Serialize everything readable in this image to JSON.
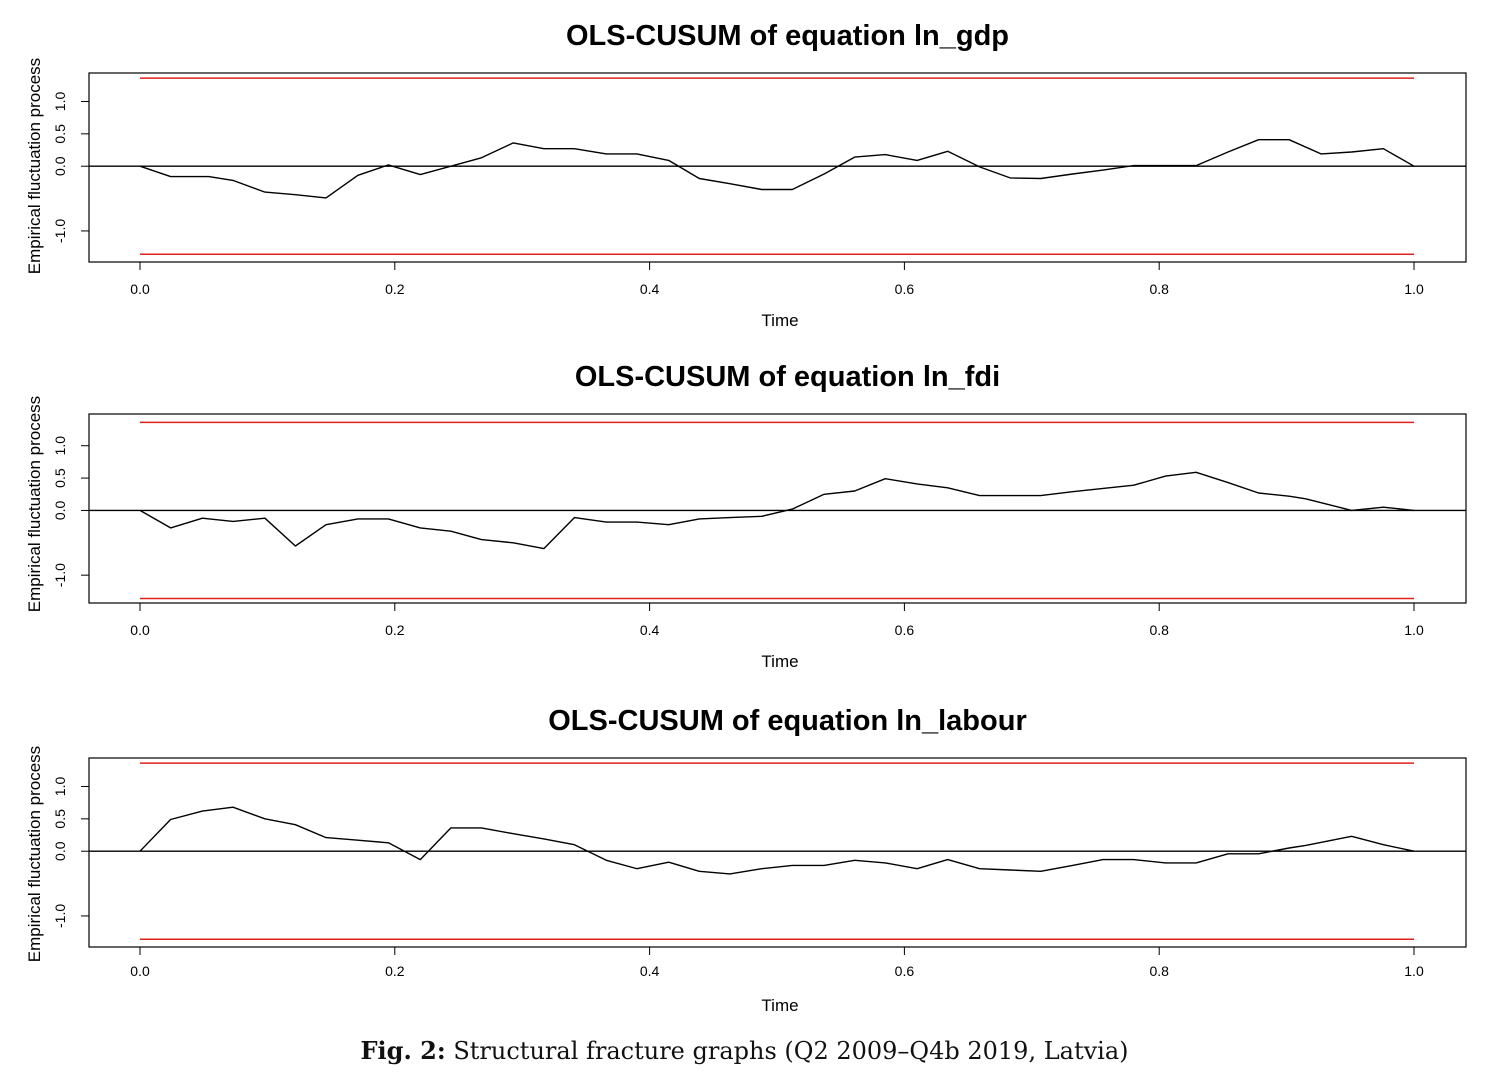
{
  "chart_data": [
    {
      "type": "line",
      "title": "OLS-CUSUM of equation ln_gdp",
      "xlabel": "Time",
      "ylabel": "Empirical fluctuation process",
      "xlim": [
        0.0,
        1.0
      ],
      "ylim": [
        -1.48,
        1.44
      ],
      "x_ticks": [
        "0.0",
        "0.2",
        "0.4",
        "0.6",
        "0.8",
        "1.0"
      ],
      "y_ticks": [
        "-1.0",
        "0.0",
        "0.5",
        "1.0"
      ],
      "boundary": 1.36,
      "series": [
        {
          "color": "#000000",
          "x": [
            0.0,
            0.024,
            0.054,
            0.073,
            0.098,
            0.122,
            0.146,
            0.171,
            0.195,
            0.22,
            0.244,
            0.268,
            0.293,
            0.317,
            0.341,
            0.366,
            0.39,
            0.415,
            0.439,
            0.463,
            0.488,
            0.512,
            0.537,
            0.561,
            0.585,
            0.61,
            0.634,
            0.659,
            0.683,
            0.707,
            0.732,
            0.756,
            0.78,
            0.805,
            0.829,
            0.854,
            0.878,
            0.902,
            0.927,
            0.951,
            0.976,
            1.0
          ],
          "y": [
            0.0,
            -0.16,
            -0.16,
            -0.22,
            -0.4,
            -0.44,
            -0.49,
            -0.14,
            0.02,
            -0.13,
            0.0,
            0.13,
            0.36,
            0.27,
            0.27,
            0.19,
            0.19,
            0.09,
            -0.19,
            -0.27,
            -0.36,
            -0.36,
            -0.12,
            0.14,
            0.18,
            0.09,
            0.23,
            -0.01,
            -0.18,
            -0.19,
            -0.12,
            -0.06,
            0.01,
            0.01,
            0.01,
            0.22,
            0.41,
            0.41,
            0.19,
            0.22,
            0.27,
            0.0
          ]
        }
      ]
    },
    {
      "type": "line",
      "title": "OLS-CUSUM of equation ln_fdi",
      "xlabel": "Time",
      "ylabel": "Empirical fluctuation process",
      "xlim": [
        0.0,
        1.0
      ],
      "ylim": [
        -1.43,
        1.49
      ],
      "x_ticks": [
        "0.0",
        "0.2",
        "0.4",
        "0.6",
        "0.8",
        "1.0"
      ],
      "y_ticks": [
        "-1.0",
        "0.0",
        "0.5",
        "1.0"
      ],
      "boundary": 1.36,
      "series": [
        {
          "color": "#000000",
          "x": [
            0.0,
            0.024,
            0.049,
            0.073,
            0.098,
            0.122,
            0.146,
            0.171,
            0.195,
            0.22,
            0.244,
            0.268,
            0.293,
            0.317,
            0.341,
            0.366,
            0.39,
            0.415,
            0.439,
            0.463,
            0.488,
            0.512,
            0.537,
            0.561,
            0.585,
            0.61,
            0.634,
            0.659,
            0.683,
            0.707,
            0.732,
            0.756,
            0.78,
            0.805,
            0.829,
            0.854,
            0.878,
            0.902,
            0.915,
            0.951,
            0.976,
            1.0
          ],
          "y": [
            0.0,
            -0.27,
            -0.12,
            -0.17,
            -0.12,
            -0.55,
            -0.22,
            -0.13,
            -0.13,
            -0.27,
            -0.32,
            -0.45,
            -0.5,
            -0.59,
            -0.11,
            -0.18,
            -0.18,
            -0.22,
            -0.13,
            -0.11,
            -0.09,
            0.02,
            0.25,
            0.3,
            0.49,
            0.41,
            0.35,
            0.23,
            0.23,
            0.23,
            0.29,
            0.34,
            0.39,
            0.53,
            0.59,
            0.43,
            0.27,
            0.22,
            0.18,
            0.0,
            0.05,
            0.0
          ]
        }
      ]
    },
    {
      "type": "line",
      "title": "OLS-CUSUM of equation ln_labour",
      "xlabel": "Time",
      "ylabel": "Empirical fluctuation process",
      "xlim": [
        0.0,
        1.0
      ],
      "ylim": [
        -1.48,
        1.44
      ],
      "x_ticks": [
        "0.0",
        "0.2",
        "0.4",
        "0.6",
        "0.8",
        "1.0"
      ],
      "y_ticks": [
        "-1.0",
        "0.0",
        "0.5",
        "1.0"
      ],
      "boundary": 1.36,
      "series": [
        {
          "color": "#000000",
          "x": [
            0.0,
            0.024,
            0.049,
            0.073,
            0.098,
            0.122,
            0.146,
            0.171,
            0.195,
            0.22,
            0.244,
            0.268,
            0.293,
            0.317,
            0.341,
            0.366,
            0.39,
            0.415,
            0.439,
            0.463,
            0.488,
            0.512,
            0.537,
            0.561,
            0.585,
            0.61,
            0.634,
            0.659,
            0.683,
            0.707,
            0.732,
            0.756,
            0.78,
            0.805,
            0.829,
            0.854,
            0.878,
            0.902,
            0.915,
            0.951,
            0.976,
            1.0
          ],
          "y": [
            0.0,
            0.49,
            0.62,
            0.68,
            0.5,
            0.41,
            0.21,
            0.17,
            0.13,
            -0.13,
            0.36,
            0.36,
            0.27,
            0.19,
            0.1,
            -0.14,
            -0.27,
            -0.17,
            -0.31,
            -0.35,
            -0.27,
            -0.22,
            -0.22,
            -0.14,
            -0.18,
            -0.27,
            -0.13,
            -0.27,
            -0.29,
            -0.31,
            -0.22,
            -0.13,
            -0.13,
            -0.18,
            -0.18,
            -0.04,
            -0.04,
            0.05,
            0.09,
            0.23,
            0.1,
            0.0
          ]
        }
      ]
    }
  ],
  "caption": {
    "label": "Fig. 2:",
    "text": " Structural fracture graphs (Q2 2009–Q4b 2019, Latvia)"
  },
  "colors": {
    "line": "#000000",
    "boundary": "#e0201b",
    "zero_line": "#000000"
  }
}
